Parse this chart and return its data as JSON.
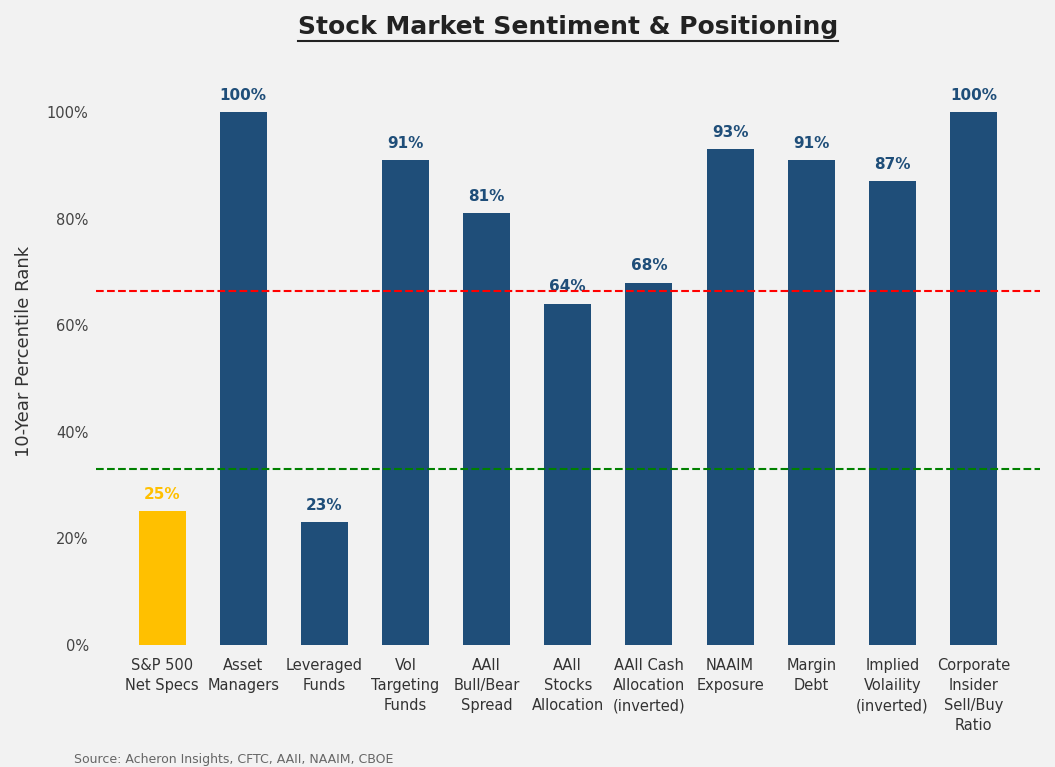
{
  "title": "Stock Market Sentiment & Positioning",
  "categories": [
    "S&P 500\nNet Specs",
    "Asset\nManagers",
    "Leveraged\nFunds",
    "Vol\nTargeting\nFunds",
    "AAII\nBull/Bear\nSpread",
    "AAII\nStocks\nAllocation",
    "AAII Cash\nAllocation\n(inverted)",
    "NAAIM\nExposure",
    "Margin\nDebt",
    "Implied\nVolaility\n(inverted)",
    "Corporate\nInsider\nSell/Buy\nRatio"
  ],
  "values": [
    25,
    100,
    23,
    91,
    81,
    64,
    68,
    93,
    91,
    87,
    100
  ],
  "bar_colors": [
    "#FFC000",
    "#1F4E79",
    "#1F4E79",
    "#1F4E79",
    "#1F4E79",
    "#1F4E79",
    "#1F4E79",
    "#1F4E79",
    "#1F4E79",
    "#1F4E79",
    "#1F4E79"
  ],
  "label_colors": [
    "#FFC000",
    "#1F4E79",
    "#1F4E79",
    "#1F4E79",
    "#1F4E79",
    "#1F4E79",
    "#1F4E79",
    "#1F4E79",
    "#1F4E79",
    "#1F4E79",
    "#1F4E79"
  ],
  "ylabel": "10-Year Percentile Rank",
  "source": "Source: Acheron Insights, CFTC, AAII, NAAIM, CBOE",
  "red_line_y": 66.5,
  "green_line_y": 33,
  "yticks": [
    0,
    20,
    40,
    60,
    80,
    100
  ],
  "ytick_labels": [
    "0%",
    "20%",
    "40%",
    "60%",
    "80%",
    "100%"
  ],
  "ylim": [
    0,
    110
  ],
  "background_color": "#F2F2F2",
  "bar_label_fontsize": 11,
  "title_fontsize": 18,
  "ylabel_fontsize": 13,
  "tick_label_fontsize": 10.5,
  "source_fontsize": 9,
  "bar_width": 0.58
}
